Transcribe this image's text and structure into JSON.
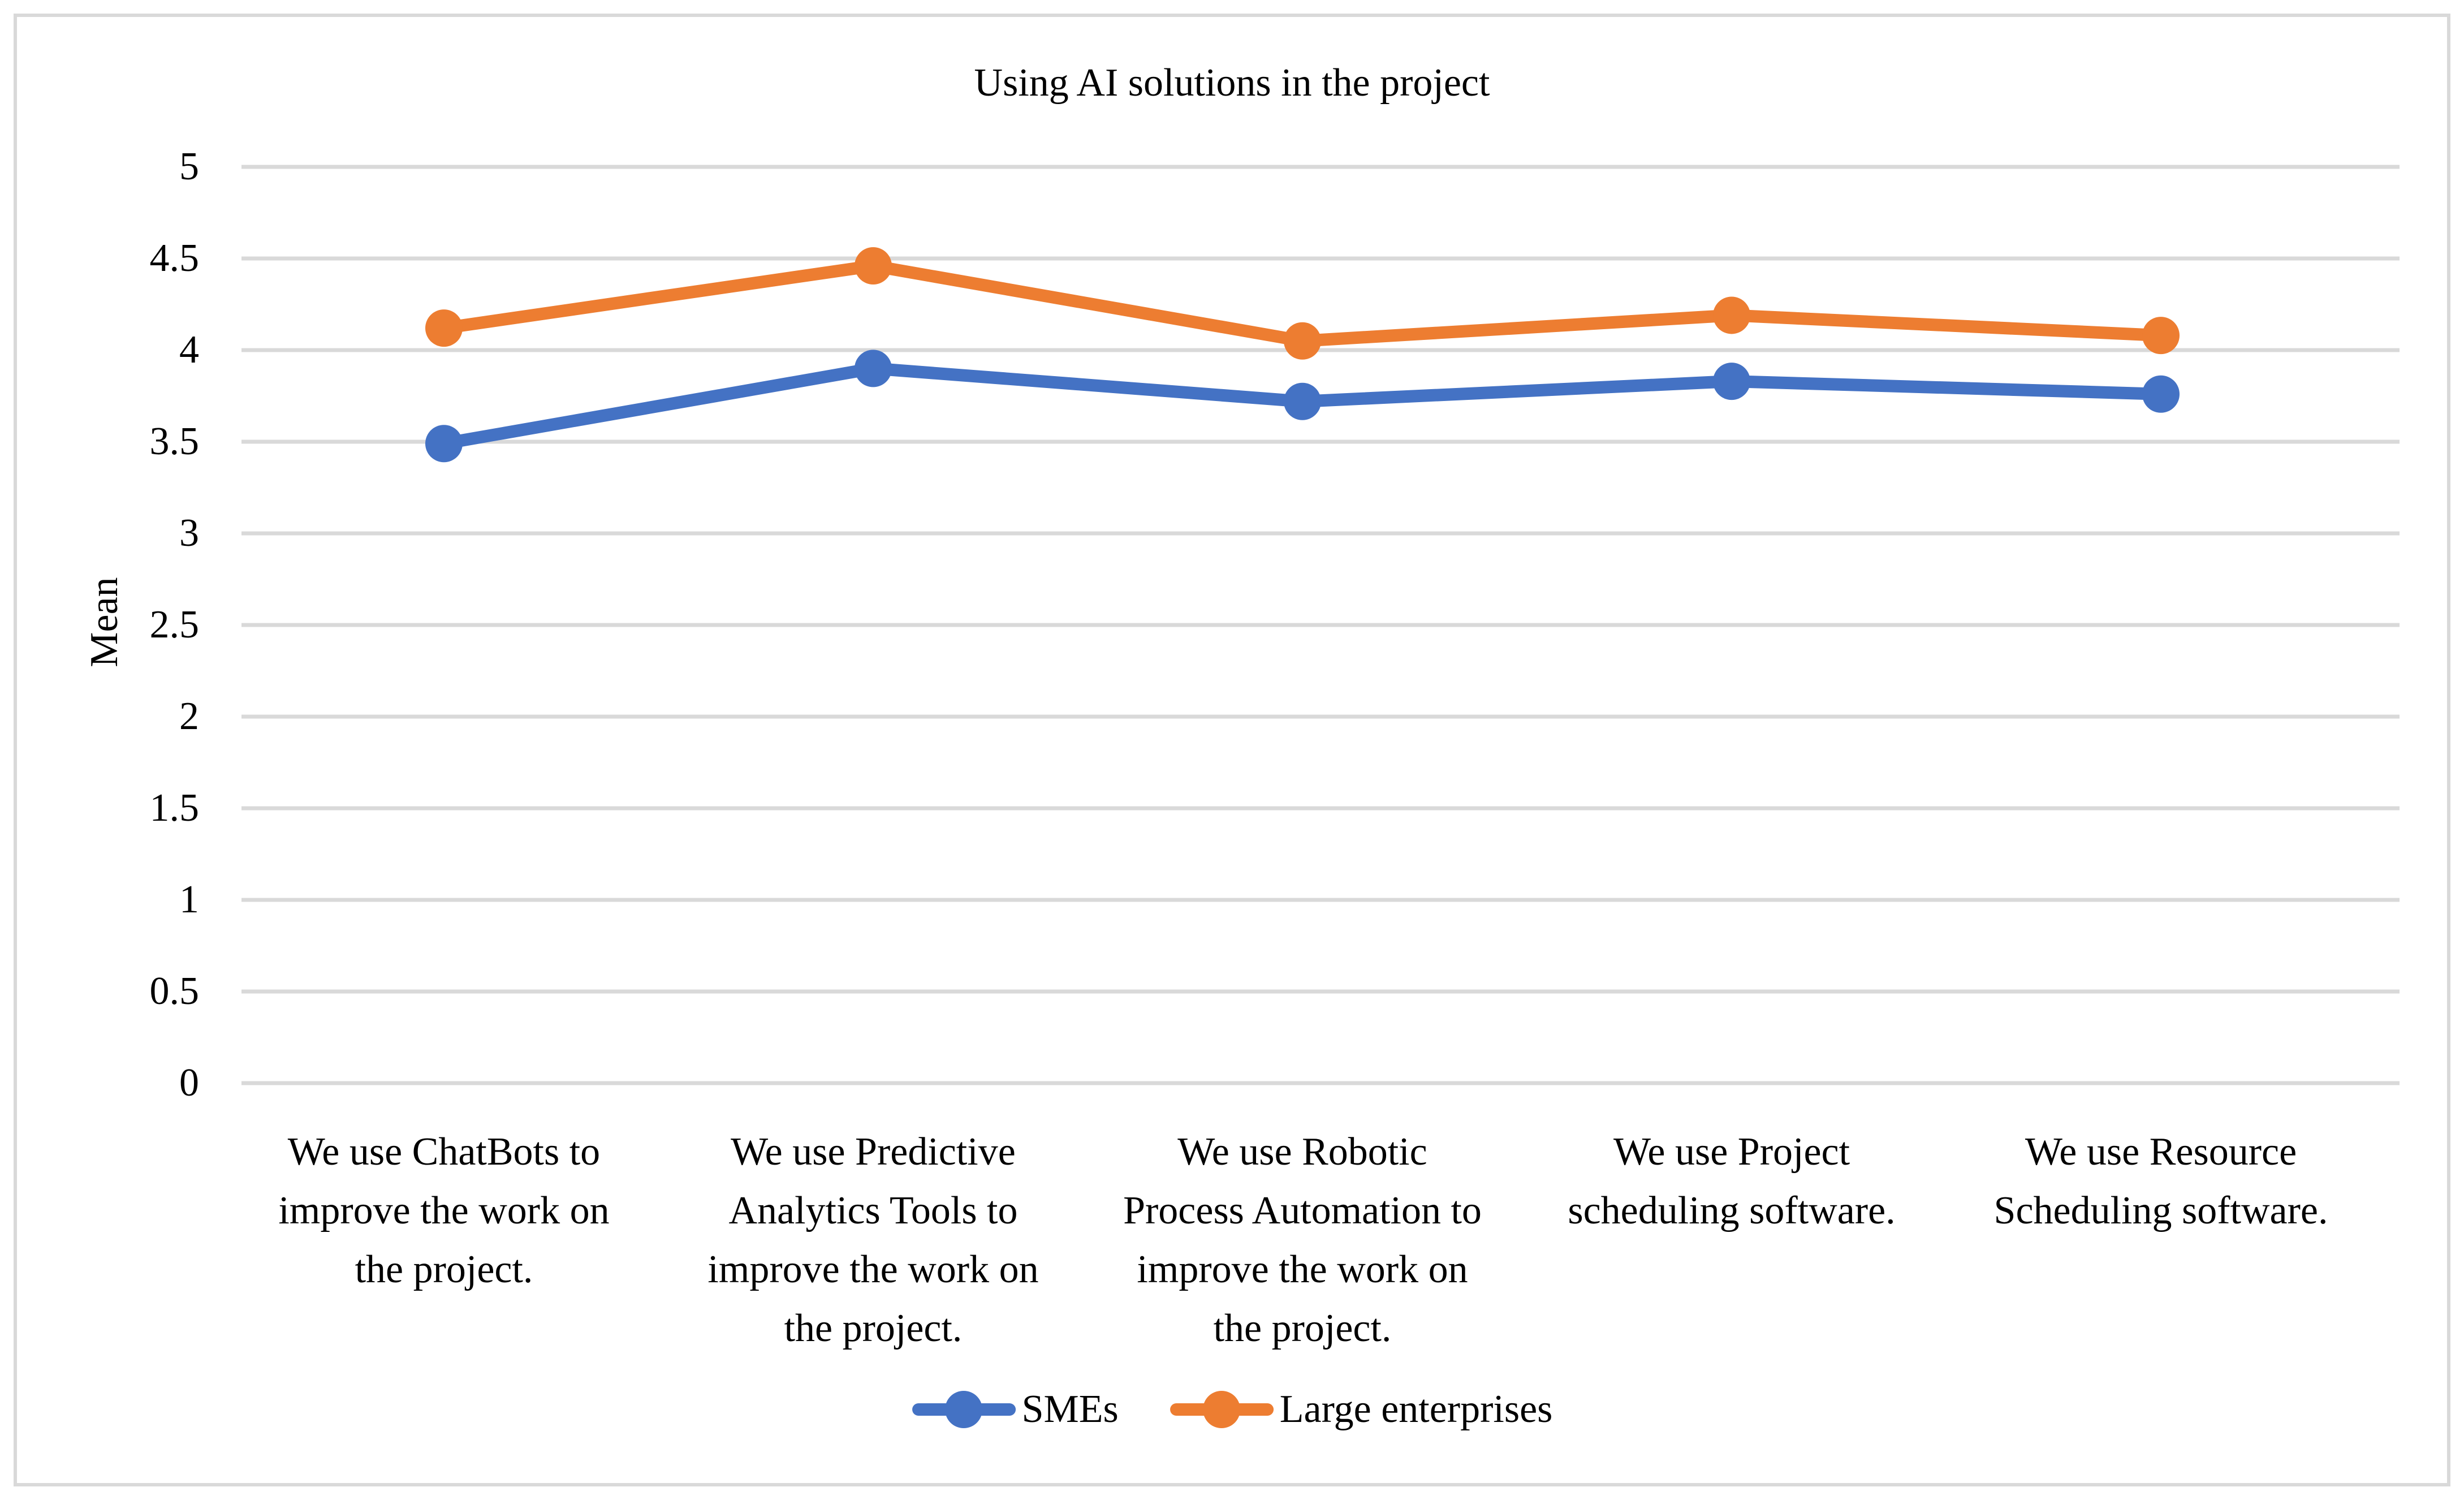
{
  "figure": {
    "title": "Using AI solutions in the project",
    "y_axis_title": "Mean"
  },
  "chart_data": {
    "type": "line",
    "title": "Using AI solutions in the project",
    "xlabel": "",
    "ylabel": "Mean",
    "ylim": [
      0,
      5
    ],
    "ytick_step": 0.5,
    "yticks": [
      "0",
      "0.5",
      "1",
      "1.5",
      "2",
      "2.5",
      "3",
      "3.5",
      "4",
      "4.5",
      "5"
    ],
    "grid": true,
    "legend_position": "bottom",
    "categories": [
      {
        "label": "We use ChatBots to improve the work on the project.",
        "lines": [
          "We use ChatBots to",
          "improve the work on",
          "the project."
        ]
      },
      {
        "label": "We use Predictive Analytics Tools to improve the work on the project.",
        "lines": [
          "We use Predictive",
          "Analytics Tools to",
          "improve the work on",
          "the project."
        ]
      },
      {
        "label": "We use Robotic Process Automation to improve the work on the project.",
        "lines": [
          "We use Robotic",
          "Process Automation to",
          "improve the work on",
          "the project."
        ]
      },
      {
        "label": "We use Project scheduling software.",
        "lines": [
          "We use Project",
          "scheduling software."
        ]
      },
      {
        "label": "We use Resource Scheduling software.",
        "lines": [
          "We use Resource",
          "Scheduling software."
        ]
      }
    ],
    "series": [
      {
        "name": "SMEs",
        "color": "#4472C4",
        "values": [
          3.49,
          3.9,
          3.72,
          3.83,
          3.76
        ]
      },
      {
        "name": "Large enterprises",
        "color": "#ED7D31",
        "values": [
          4.12,
          4.46,
          4.05,
          4.19,
          4.08
        ]
      }
    ],
    "colors": {
      "gridline": "#D9D9D9",
      "border": "#D9D9D9",
      "text": "#000000",
      "background": "#FFFFFF"
    }
  }
}
